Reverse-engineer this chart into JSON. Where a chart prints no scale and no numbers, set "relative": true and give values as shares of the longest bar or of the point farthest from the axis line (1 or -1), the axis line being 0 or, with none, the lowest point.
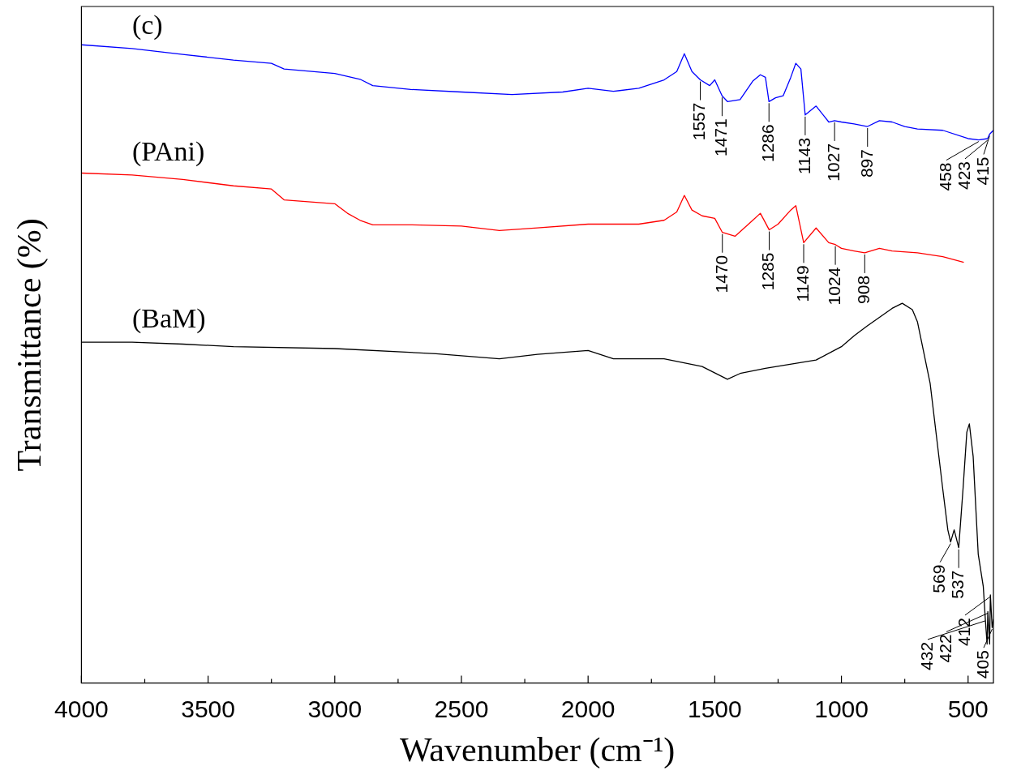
{
  "chart_data": {
    "type": "line",
    "xlabel": "Wavenumber (cm⁻¹)",
    "ylabel": "Transmittance (%)",
    "relative": true,
    "xlim": [
      4000,
      400
    ],
    "xticks": [
      4000,
      {
        "value": 3750,
        "label": null
      },
      3500,
      {
        "value": 3250,
        "label": null
      },
      3000,
      {
        "value": 2750,
        "label": null
      },
      2500,
      {
        "value": 2250,
        "label": null
      },
      2000,
      {
        "value": 1750,
        "label": null
      },
      1500,
      {
        "value": 1250,
        "label": null
      },
      1000,
      {
        "value": 750,
        "label": null
      },
      500
    ],
    "grid": false,
    "legend": false,
    "series": [
      {
        "name": "(c)",
        "color": "#0000ff",
        "x": [
          4000,
          3800,
          3600,
          3400,
          3250,
          3200,
          3000,
          2900,
          2850,
          2700,
          2500,
          2300,
          2100,
          2000,
          1900,
          1800,
          1700,
          1650,
          1620,
          1590,
          1557,
          1520,
          1500,
          1471,
          1450,
          1400,
          1350,
          1320,
          1300,
          1286,
          1260,
          1230,
          1200,
          1180,
          1160,
          1143,
          1100,
          1050,
          1027,
          1000,
          950,
          897,
          850,
          800,
          750,
          700,
          600,
          500,
          458,
          423,
          415,
          400
        ],
        "values": [
          1.0,
          0.994,
          0.985,
          0.976,
          0.971,
          0.962,
          0.955,
          0.946,
          0.936,
          0.93,
          0.926,
          0.922,
          0.926,
          0.932,
          0.927,
          0.932,
          0.945,
          0.958,
          0.986,
          0.958,
          0.945,
          0.936,
          0.945,
          0.92,
          0.911,
          0.914,
          0.943,
          0.953,
          0.949,
          0.911,
          0.917,
          0.92,
          0.949,
          0.971,
          0.962,
          0.89,
          0.904,
          0.879,
          0.881,
          0.879,
          0.876,
          0.872,
          0.881,
          0.879,
          0.872,
          0.868,
          0.866,
          0.853,
          0.851,
          0.853,
          0.86,
          0.866
        ]
      },
      {
        "name": "(PAni)",
        "color": "#ff0000",
        "x": [
          4000,
          3800,
          3600,
          3400,
          3250,
          3200,
          3000,
          2950,
          2900,
          2850,
          2700,
          2500,
          2350,
          2200,
          2000,
          1800,
          1700,
          1650,
          1620,
          1590,
          1550,
          1500,
          1470,
          1420,
          1350,
          1320,
          1285,
          1250,
          1200,
          1180,
          1149,
          1100,
          1050,
          1024,
          1000,
          950,
          908,
          850,
          800,
          700,
          600,
          517
        ],
        "values": [
          0.799,
          0.796,
          0.789,
          0.779,
          0.774,
          0.757,
          0.751,
          0.736,
          0.725,
          0.718,
          0.718,
          0.716,
          0.709,
          0.713,
          0.719,
          0.719,
          0.725,
          0.738,
          0.764,
          0.741,
          0.732,
          0.728,
          0.706,
          0.7,
          0.725,
          0.736,
          0.71,
          0.719,
          0.741,
          0.748,
          0.69,
          0.713,
          0.69,
          0.687,
          0.681,
          0.677,
          0.674,
          0.681,
          0.677,
          0.674,
          0.668,
          0.659
        ]
      },
      {
        "name": "(BaM)",
        "color": "#000000",
        "x": [
          4000,
          3800,
          3600,
          3400,
          3000,
          2600,
          2350,
          2200,
          2000,
          1900,
          1700,
          1550,
          1450,
          1400,
          1300,
          1100,
          1000,
          950,
          900,
          800,
          760,
          720,
          700,
          650,
          600,
          580,
          569,
          555,
          537,
          520,
          505,
          495,
          480,
          470,
          460,
          440,
          432,
          425,
          422,
          415,
          412,
          405,
          400
        ],
        "values": [
          0.534,
          0.534,
          0.531,
          0.527,
          0.524,
          0.516,
          0.508,
          0.515,
          0.521,
          0.508,
          0.508,
          0.496,
          0.476,
          0.485,
          0.493,
          0.506,
          0.527,
          0.544,
          0.559,
          0.587,
          0.595,
          0.585,
          0.566,
          0.47,
          0.304,
          0.24,
          0.221,
          0.24,
          0.212,
          0.304,
          0.393,
          0.406,
          0.355,
          0.278,
          0.202,
          0.151,
          0.1,
          0.061,
          0.112,
          0.061,
          0.138,
          0.087,
          0.1
        ]
      }
    ],
    "annotations": [
      {
        "text": "1557",
        "x": 1557,
        "y": 0.945
      },
      {
        "text": "1471",
        "x": 1471,
        "y": 0.92
      },
      {
        "text": "1286",
        "x": 1286,
        "y": 0.911
      },
      {
        "text": "1143",
        "x": 1143,
        "y": 0.89
      },
      {
        "text": "1027",
        "x": 1027,
        "y": 0.881
      },
      {
        "text": "897",
        "x": 897,
        "y": 0.872
      },
      {
        "text": "458",
        "x": 458,
        "y": 0.851
      },
      {
        "text": "423",
        "x": 423,
        "y": 0.853
      },
      {
        "text": "415",
        "x": 415,
        "y": 0.86
      },
      {
        "text": "1470",
        "x": 1470,
        "y": 0.706
      },
      {
        "text": "1285",
        "x": 1285,
        "y": 0.71
      },
      {
        "text": "1149",
        "x": 1149,
        "y": 0.69
      },
      {
        "text": "1024",
        "x": 1024,
        "y": 0.687
      },
      {
        "text": "908",
        "x": 908,
        "y": 0.674
      },
      {
        "text": "569",
        "x": 569,
        "y": 0.221
      },
      {
        "text": "537",
        "x": 537,
        "y": 0.212
      },
      {
        "text": "432",
        "x": 432,
        "y": 0.1
      },
      {
        "text": "422",
        "x": 422,
        "y": 0.112
      },
      {
        "text": "412",
        "x": 412,
        "y": 0.138
      },
      {
        "text": "405",
        "x": 405,
        "y": 0.087
      }
    ]
  }
}
